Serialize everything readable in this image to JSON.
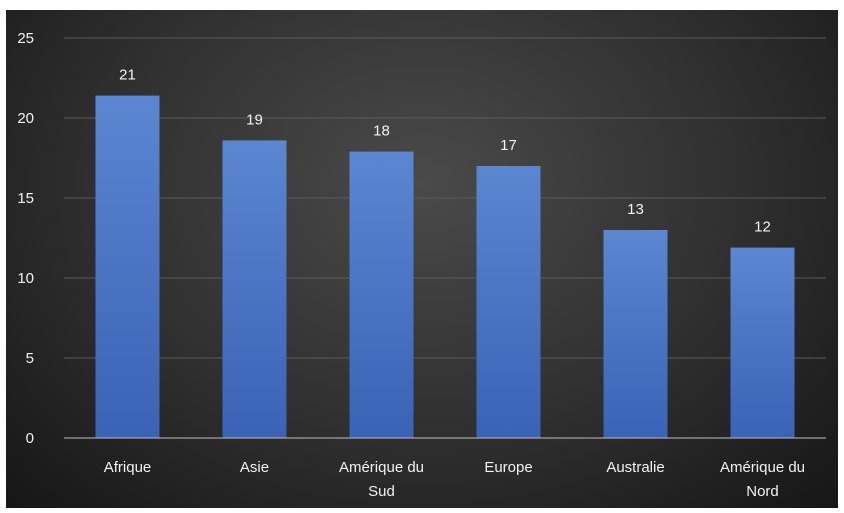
{
  "chart_data": {
    "type": "bar",
    "categories": [
      "Afrique",
      "Asie",
      "Amérique du Sud",
      "Europe",
      "Australie",
      "Amérique du Nord"
    ],
    "category_lines": [
      [
        "Afrique"
      ],
      [
        "Asie"
      ],
      [
        "Amérique du",
        "Sud"
      ],
      [
        "Europe"
      ],
      [
        "Australie"
      ],
      [
        "Amérique du",
        "Nord"
      ]
    ],
    "values": [
      21.4,
      18.6,
      17.9,
      17.0,
      13.0,
      11.9
    ],
    "data_labels": [
      "21",
      "19",
      "18",
      "17",
      "13",
      "12"
    ],
    "ylim": [
      0,
      25
    ],
    "yticks": [
      "0",
      "5",
      "10",
      "15",
      "20",
      "25"
    ],
    "grid": true,
    "legend": "none",
    "bar_color_top": "#5b86d0",
    "bar_color_bottom": "#3a62b6",
    "background": "#2f2f2f",
    "grid_color": "#5a5a5a",
    "text_color": "#f2f2f2"
  }
}
